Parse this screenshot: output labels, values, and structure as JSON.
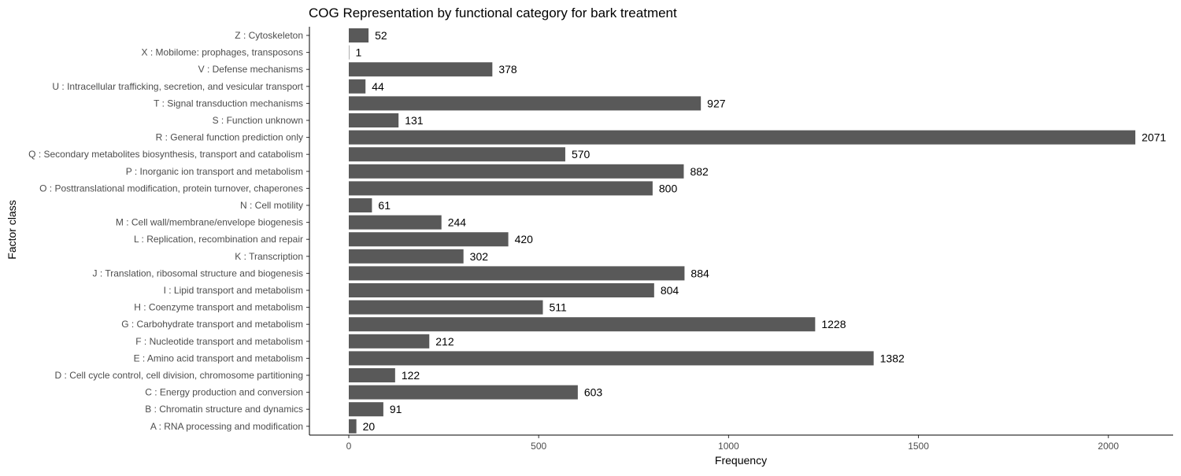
{
  "chart_data": {
    "type": "bar",
    "orientation": "horizontal",
    "title": "COG Representation by functional category for bark treatment",
    "xlabel": "Frequency",
    "ylabel": "Factor class",
    "xlim": [
      0,
      2100
    ],
    "xticks": [
      0,
      500,
      1000,
      1500,
      2000
    ],
    "xtick_labels": [
      "0",
      "500",
      "1000",
      "1500",
      "2000"
    ],
    "grid": false,
    "legend": "none",
    "bar_color": "#595959",
    "categories": [
      "Z : Cytoskeleton",
      "X : Mobilome: prophages, transposons",
      "V : Defense mechanisms",
      "U : Intracellular trafficking, secretion, and vesicular transport",
      "T : Signal transduction mechanisms",
      "S : Function unknown",
      "R : General function prediction only",
      "Q : Secondary metabolites biosynthesis, transport and catabolism",
      "P : Inorganic ion transport and metabolism",
      "O : Posttranslational modification, protein turnover, chaperones",
      "N : Cell motility",
      "M : Cell wall/membrane/envelope biogenesis",
      "L : Replication, recombination and repair",
      "K : Transcription",
      "J : Translation, ribosomal structure and biogenesis",
      "I : Lipid transport and metabolism",
      "H : Coenzyme transport and metabolism",
      "G : Carbohydrate transport and metabolism",
      "F : Nucleotide transport and metabolism",
      "E : Amino acid transport and metabolism",
      "D : Cell cycle control, cell division, chromosome partitioning",
      "C : Energy production and conversion",
      "B : Chromatin structure and dynamics",
      "A : RNA processing and modification"
    ],
    "values": [
      52,
      1,
      378,
      44,
      927,
      131,
      2071,
      570,
      882,
      800,
      61,
      244,
      420,
      302,
      884,
      804,
      511,
      1228,
      212,
      1382,
      122,
      603,
      91,
      20
    ],
    "data_labels": [
      "52",
      "1",
      "378",
      "44",
      "927",
      "131",
      "2071",
      "570",
      "882",
      "800",
      "61",
      "244",
      "420",
      "302",
      "884",
      "804",
      "511",
      "1228",
      "212",
      "1382",
      "122",
      "603",
      "91",
      "20"
    ]
  }
}
